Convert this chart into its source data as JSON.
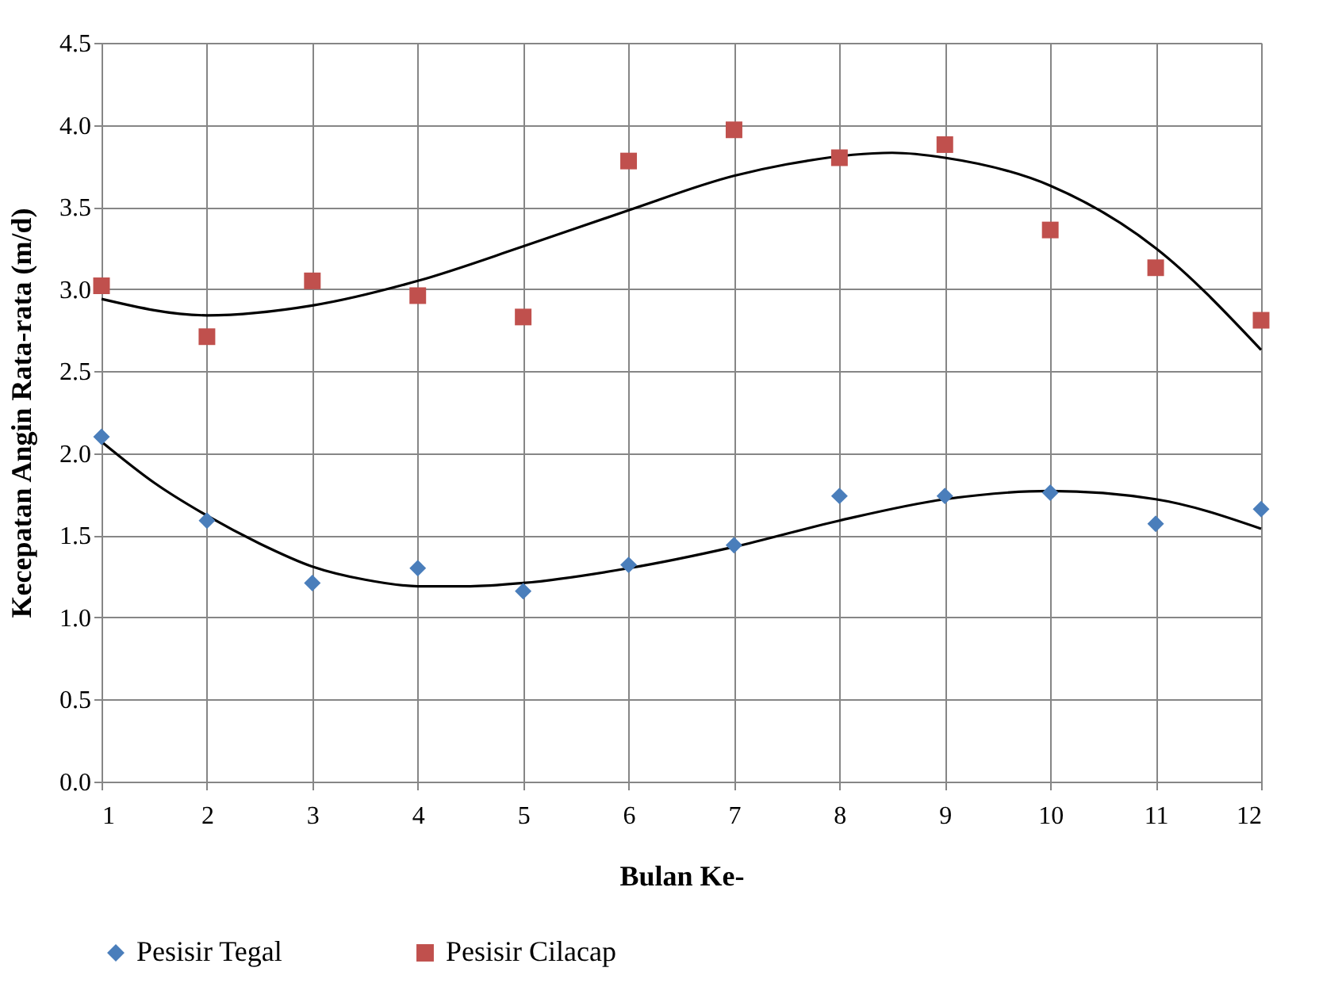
{
  "chart_data": {
    "type": "scatter",
    "xlabel": "Bulan Ke-",
    "ylabel": "Kecepatan Angin Rata-rata (m/d)",
    "x": [
      1,
      2,
      3,
      4,
      5,
      6,
      7,
      8,
      9,
      10,
      11,
      12
    ],
    "series": [
      {
        "name": "Pesisir Tegal",
        "color": "#4a7ebb",
        "marker": "diamond",
        "values": [
          2.1,
          1.59,
          1.21,
          1.3,
          1.16,
          1.32,
          1.44,
          1.74,
          1.74,
          1.76,
          1.57,
          1.66
        ]
      },
      {
        "name": "Pesisir Cilacap",
        "color": "#c0504d",
        "marker": "square",
        "values": [
          3.02,
          2.71,
          3.05,
          2.96,
          2.83,
          3.78,
          3.97,
          3.8,
          3.88,
          3.36,
          3.13,
          2.81
        ]
      },
      {
        "type": "line",
        "color": "#000000",
        "x": [
          1,
          1.5,
          2,
          2.5,
          3,
          3.5,
          4,
          4.5,
          5,
          6,
          7,
          8,
          9,
          10,
          11,
          12
        ],
        "values": [
          2.07,
          1.82,
          1.62,
          1.45,
          1.31,
          1.23,
          1.19,
          1.19,
          1.21,
          1.3,
          1.43,
          1.59,
          1.72,
          1.77,
          1.72,
          1.54
        ]
      },
      {
        "type": "line",
        "color": "#000000",
        "x": [
          1,
          2,
          3,
          4,
          5,
          6,
          7,
          7.5,
          8.5,
          9,
          10,
          11,
          12
        ],
        "values": [
          2.94,
          2.84,
          2.9,
          3.05,
          3.26,
          3.48,
          3.69,
          3.76,
          3.83,
          3.8,
          3.63,
          3.25,
          2.63
        ]
      }
    ],
    "xlim": [
      1,
      12
    ],
    "xticks": [
      1,
      2,
      3,
      4,
      5,
      6,
      7,
      8,
      9,
      10,
      11,
      12
    ],
    "ylim": [
      0,
      4.5
    ],
    "yticks": [
      {
        "value": 0,
        "label": "0.0"
      },
      {
        "value": 0.5,
        "label": "0.5"
      },
      {
        "value": 1,
        "label": "1.0"
      },
      {
        "value": 1.5,
        "label": "1.5"
      },
      {
        "value": 2,
        "label": "2.0"
      },
      {
        "value": 2.5,
        "label": "2.5"
      },
      {
        "value": 3,
        "label": "3.0"
      },
      {
        "value": 3.5,
        "label": "3.5"
      },
      {
        "value": 4,
        "label": "4.0"
      },
      {
        "value": 4.5,
        "label": "4.5"
      }
    ],
    "grid": true,
    "legend": "bottom"
  }
}
